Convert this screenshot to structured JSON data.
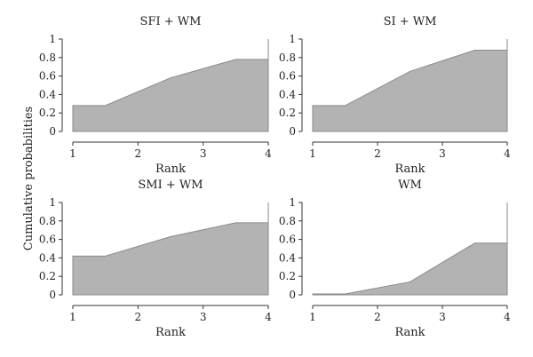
{
  "figure": {
    "shared_ylabel": "Cumulative probabilities"
  },
  "chart_data": [
    {
      "type": "area",
      "title": "SFI + WM",
      "xlabel": "Rank",
      "ylabel": "",
      "x": [
        1,
        1.5,
        2.5,
        3.5,
        4
      ],
      "y": [
        0.28,
        0.28,
        0.58,
        0.78,
        0.78
      ],
      "xlim": [
        1,
        4
      ],
      "ylim": [
        0,
        1
      ],
      "xticks": [
        1,
        2,
        3,
        4
      ],
      "yticks": [
        0,
        0.2,
        0.4,
        0.6,
        0.8,
        1
      ],
      "ytick_labels": [
        "0",
        "0.2",
        "0.4",
        "0.6",
        "0.8",
        "1"
      ],
      "end_value": 1,
      "grid": false
    },
    {
      "type": "area",
      "title": "SI + WM",
      "xlabel": "Rank",
      "ylabel": "",
      "x": [
        1,
        1.5,
        2.5,
        3.5,
        4
      ],
      "y": [
        0.28,
        0.28,
        0.65,
        0.88,
        0.88
      ],
      "xlim": [
        1,
        4
      ],
      "ylim": [
        0,
        1
      ],
      "xticks": [
        1,
        2,
        3,
        4
      ],
      "yticks": [
        0,
        0.2,
        0.4,
        0.6,
        0.8,
        1
      ],
      "ytick_labels": [
        "0",
        "0.2",
        "0.4",
        "0.6",
        "0.8",
        "1"
      ],
      "end_value": 1,
      "grid": false
    },
    {
      "type": "area",
      "title": "SMI + WM",
      "xlabel": "Rank",
      "ylabel": "",
      "x": [
        1,
        1.5,
        2.5,
        3.5,
        4
      ],
      "y": [
        0.42,
        0.42,
        0.63,
        0.78,
        0.78
      ],
      "xlim": [
        1,
        4
      ],
      "ylim": [
        0,
        1
      ],
      "xticks": [
        1,
        2,
        3,
        4
      ],
      "yticks": [
        0,
        0.2,
        0.4,
        0.6,
        0.8,
        1
      ],
      "ytick_labels": [
        "0",
        "0.2",
        "0.4",
        "0.6",
        "0.8",
        "1"
      ],
      "end_value": 1,
      "grid": false
    },
    {
      "type": "area",
      "title": "WM",
      "xlabel": "Rank",
      "ylabel": "",
      "x": [
        1,
        1.5,
        2.5,
        3.5,
        4
      ],
      "y": [
        0.01,
        0.01,
        0.14,
        0.56,
        0.56
      ],
      "xlim": [
        1,
        4
      ],
      "ylim": [
        0,
        1
      ],
      "xticks": [
        1,
        2,
        3,
        4
      ],
      "yticks": [
        0,
        0.2,
        0.4,
        0.6,
        0.8,
        1
      ],
      "ytick_labels": [
        "0",
        "0.2",
        "0.4",
        "0.6",
        "0.8",
        "1"
      ],
      "end_value": 1,
      "grid": false
    }
  ]
}
